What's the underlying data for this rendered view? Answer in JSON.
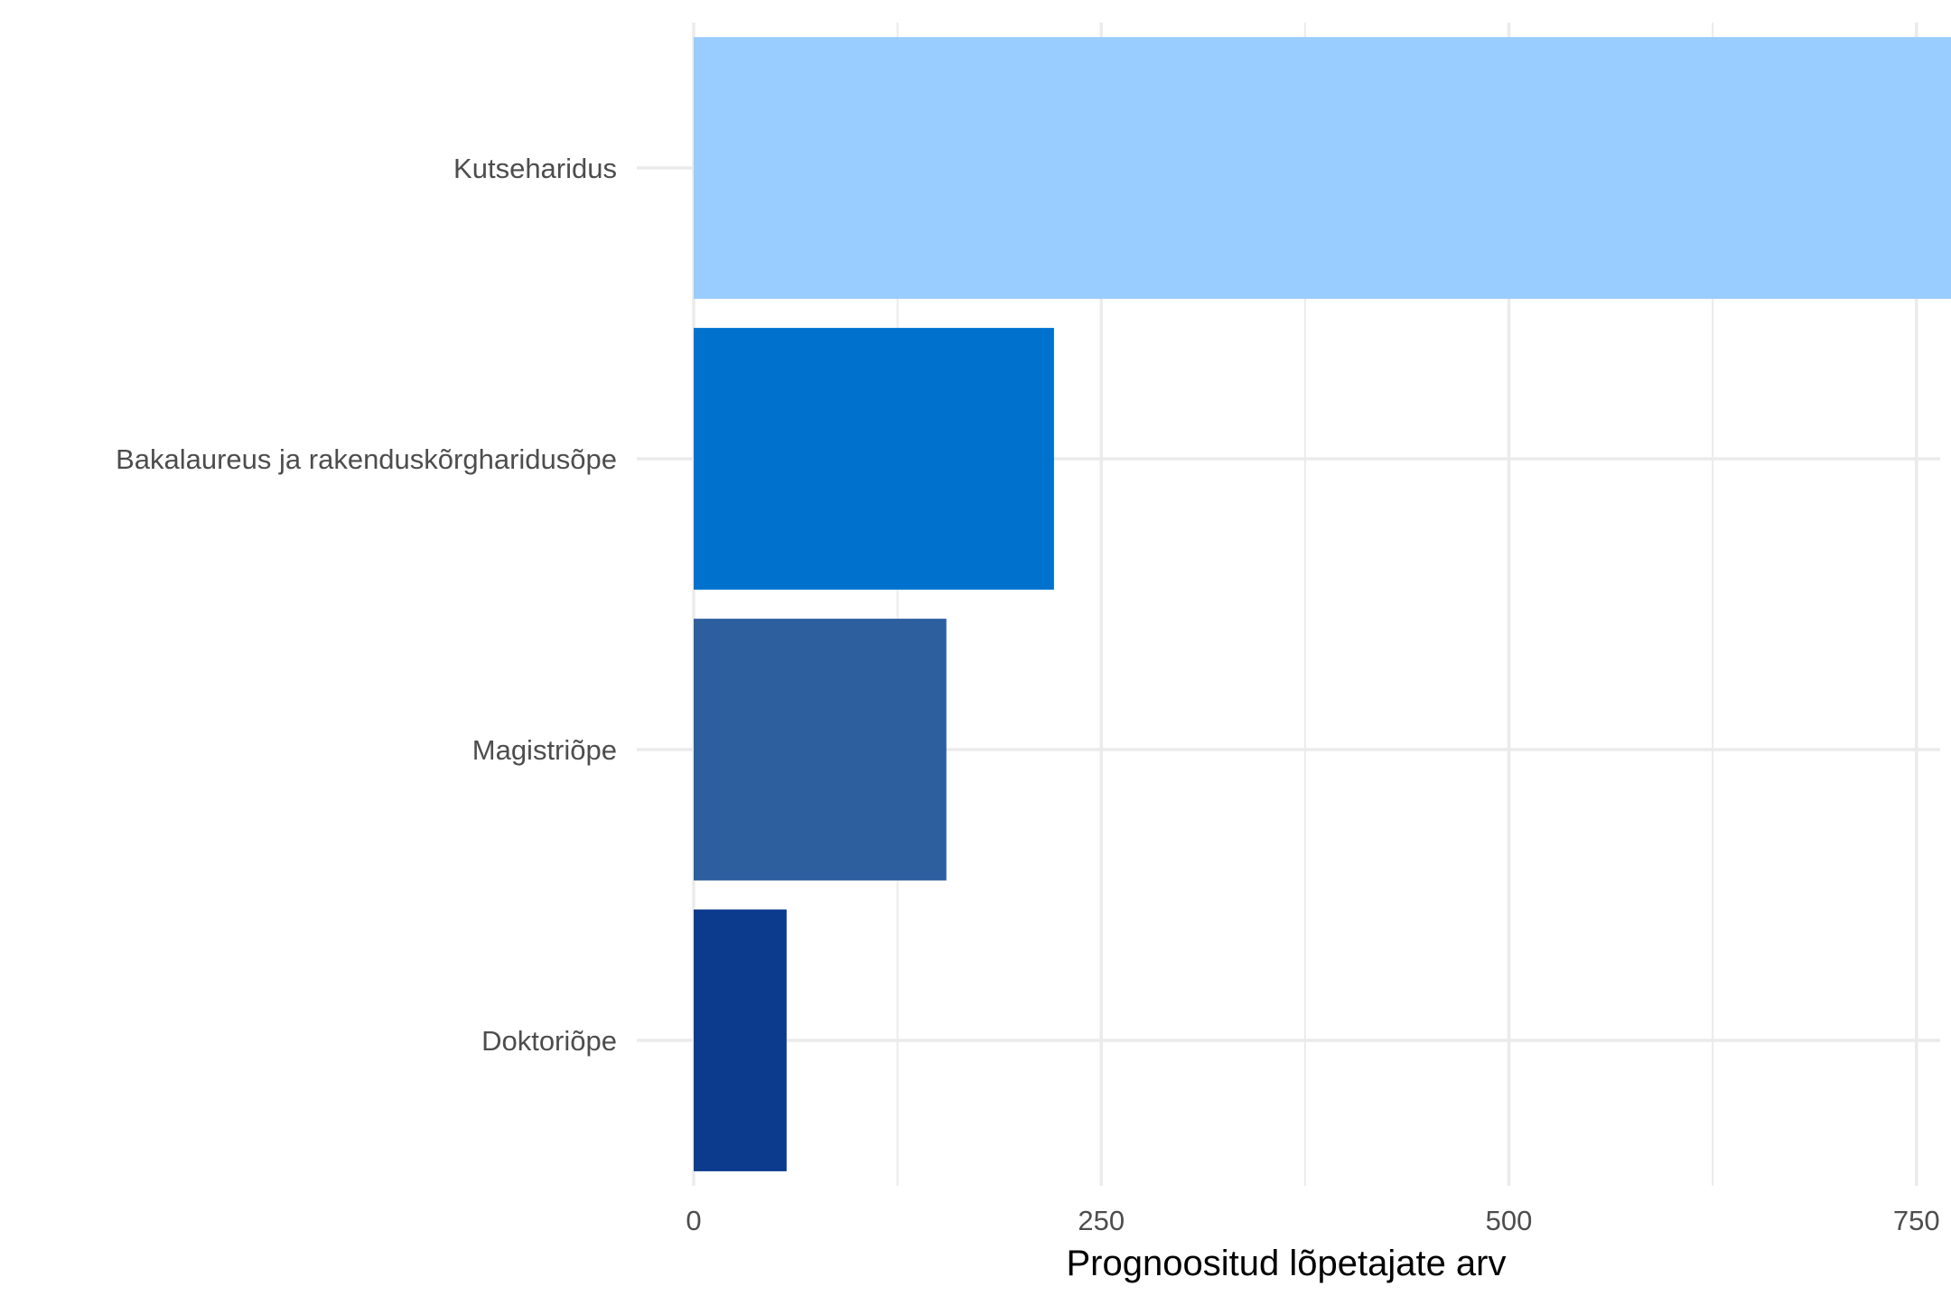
{
  "chart_data": {
    "type": "bar",
    "orientation": "horizontal",
    "categories": [
      "Kutseharidus",
      "Bakalaureus ja rakenduskõrgharidusõpe",
      "Magistriõpe",
      "Doktoriõpe"
    ],
    "values": [
      913,
      221,
      155,
      57
    ],
    "colors": [
      "#99ccff",
      "#0072ce",
      "#2d5f9e",
      "#0c3b8d"
    ],
    "xlabel": "Prognoositud lõpetajate arv",
    "ylabel": "",
    "title": "",
    "xlim": [
      0,
      955
    ],
    "x_ticks": [
      0,
      250,
      500,
      750
    ],
    "x_tick_labels": [
      "0",
      "250",
      "500",
      "750"
    ],
    "grid": true,
    "legend": "none"
  }
}
